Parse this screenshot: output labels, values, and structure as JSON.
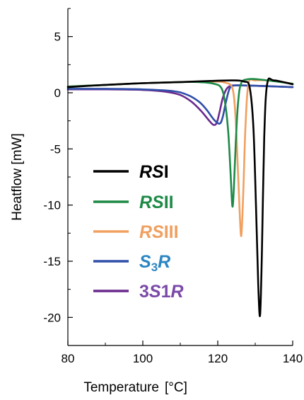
{
  "chart_data": {
    "type": "line",
    "xlabel": "Temperature",
    "xlabel_unit": "[°C]",
    "ylabel": "Heatflow [mW]",
    "xlim": [
      80,
      140
    ],
    "ylim": [
      -22.5,
      7.5
    ],
    "xticks": [
      80,
      100,
      120,
      140
    ],
    "yticks": [
      5,
      0,
      -5,
      -10,
      -15,
      -20
    ],
    "legend_placement": "center-left",
    "series": [
      {
        "name": "RSI",
        "color": "#000000",
        "x": [
          80,
          90,
          100,
          110,
          118,
          124,
          127,
          128.5,
          129.5,
          130.2,
          130.8,
          131.3,
          131.8,
          132.4,
          133.2,
          135,
          140
        ],
        "y": [
          0.5,
          0.7,
          0.85,
          0.95,
          1.05,
          1.1,
          1.0,
          0.5,
          -3,
          -10,
          -17,
          -19.8,
          -14,
          -4,
          0.8,
          1.1,
          0.75
        ]
      },
      {
        "name": "RSII",
        "color": "#1e8a47",
        "x": [
          80,
          90,
          100,
          110,
          115,
          119,
          121,
          122,
          122.8,
          123.4,
          123.9,
          124.3,
          124.8,
          125.4,
          126.2,
          128,
          132,
          140
        ],
        "y": [
          0.55,
          0.7,
          0.85,
          0.95,
          0.95,
          0.8,
          0.4,
          -1,
          -3.5,
          -7,
          -10.1,
          -8.5,
          -4.5,
          -1,
          0.8,
          1.2,
          1.15,
          0.8
        ]
      },
      {
        "name": "RSIII",
        "color": "#f0a060",
        "x": [
          80,
          90,
          100,
          110,
          118,
          122,
          124,
          124.8,
          125.4,
          125.9,
          126.3,
          126.8,
          127.4,
          128.2,
          130,
          135,
          140
        ],
        "y": [
          0.55,
          0.7,
          0.85,
          0.95,
          1.0,
          0.9,
          0.3,
          -2.5,
          -7,
          -11,
          -12.7,
          -9,
          -3,
          0.8,
          1.1,
          1.05,
          0.8
        ]
      },
      {
        "name": "S3R",
        "color": "#2f4fa8",
        "x": [
          80,
          90,
          100,
          108,
          112,
          115,
          117,
          119,
          120.5,
          121.3,
          122.2,
          123.2,
          124.5,
          127,
          132,
          140
        ],
        "y": [
          0.35,
          0.35,
          0.3,
          0.15,
          -0.2,
          -0.8,
          -1.5,
          -2.4,
          -2.75,
          -2.2,
          -0.8,
          0.4,
          0.65,
          0.65,
          0.6,
          0.5
        ]
      },
      {
        "name": "3S1R",
        "color": "#6b2a8e",
        "x": [
          80,
          90,
          100,
          106,
          110,
          113,
          115.5,
          117.5,
          118.8,
          119.7,
          120.5,
          121.5,
          123,
          126,
          132,
          140
        ],
        "y": [
          0.3,
          0.3,
          0.25,
          0.1,
          -0.2,
          -0.8,
          -1.6,
          -2.4,
          -2.85,
          -2.7,
          -1.7,
          -0.3,
          0.55,
          0.65,
          0.6,
          0.5
        ]
      }
    ]
  },
  "legend": {
    "rsi": {
      "a": "RS",
      "b": "I",
      "color": "#000000"
    },
    "rsii": {
      "a": "RS",
      "b": "II",
      "color": "#1e8a47"
    },
    "rsiii": {
      "a": "RS",
      "b": "III",
      "color": "#f0a060"
    },
    "s3r": {
      "a": "S",
      "sub": "3",
      "b": "R",
      "color": "#2f4fa8",
      "text_color": "#2c86c2"
    },
    "s1r": {
      "a": "3",
      "b": "S",
      "c": "1",
      "d": "R",
      "color": "#6b2a8e",
      "text_color": "#7a4aa8"
    }
  }
}
